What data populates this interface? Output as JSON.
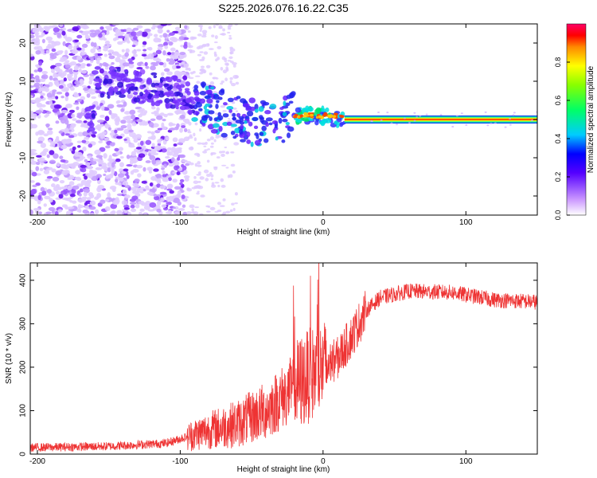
{
  "title": "S225.2026.076.16.22.C35",
  "chart_data": [
    {
      "type": "heatmap",
      "xlabel": "Height of straight line (km)",
      "ylabel": "Frequency (Hz)",
      "xlim": [
        -205,
        150
      ],
      "ylim": [
        -25,
        25
      ],
      "xticks": [
        -200,
        -100,
        0,
        100
      ],
      "yticks": [
        -20,
        -10,
        0,
        10,
        20
      ],
      "colorbar": {
        "label": "Normalized spectral amplitude",
        "range": [
          0,
          1
        ],
        "ticks": [
          0.0,
          0.2,
          0.4,
          0.6,
          0.8
        ]
      },
      "features": {
        "noise_region_km": [
          -205,
          -95
        ],
        "noise_fade_km": [
          -95,
          -60
        ],
        "doppler_track": [
          {
            "x": -160,
            "y": 10
          },
          {
            "x": -140,
            "y": 9
          },
          {
            "x": -120,
            "y": 8
          },
          {
            "x": -100,
            "y": 7
          },
          {
            "x": -80,
            "y": 3
          },
          {
            "x": -60,
            "y": 0
          },
          {
            "x": -40,
            "y": -1
          },
          {
            "x": -20,
            "y": 1
          },
          {
            "x": 0,
            "y": 1
          },
          {
            "x": 15,
            "y": 0
          },
          {
            "x": 150,
            "y": 0
          }
        ],
        "carrier_line_start_km": 15,
        "carrier_freq_hz": 0
      }
    },
    {
      "type": "line",
      "xlabel": "Height of straight line (km)",
      "ylabel": "SNR (10 * v/v)",
      "xlim": [
        -205,
        150
      ],
      "ylim": [
        0,
        440
      ],
      "xticks": [
        -200,
        -100,
        0,
        100
      ],
      "yticks": [
        0,
        100,
        200,
        300,
        400
      ],
      "series": [
        {
          "name": "SNR",
          "color": "#ee3333",
          "profile": [
            {
              "x": -205,
              "y": 15
            },
            {
              "x": -150,
              "y": 18
            },
            {
              "x": -110,
              "y": 25
            },
            {
              "x": -95,
              "y": 40
            },
            {
              "x": -80,
              "y": 55
            },
            {
              "x": -60,
              "y": 70
            },
            {
              "x": -40,
              "y": 100
            },
            {
              "x": -25,
              "y": 140
            },
            {
              "x": -10,
              "y": 180
            },
            {
              "x": 0,
              "y": 200
            },
            {
              "x": 10,
              "y": 220
            },
            {
              "x": 20,
              "y": 270
            },
            {
              "x": 30,
              "y": 330
            },
            {
              "x": 40,
              "y": 360
            },
            {
              "x": 60,
              "y": 375
            },
            {
              "x": 90,
              "y": 372
            },
            {
              "x": 120,
              "y": 355
            },
            {
              "x": 150,
              "y": 350
            }
          ]
        }
      ]
    }
  ]
}
